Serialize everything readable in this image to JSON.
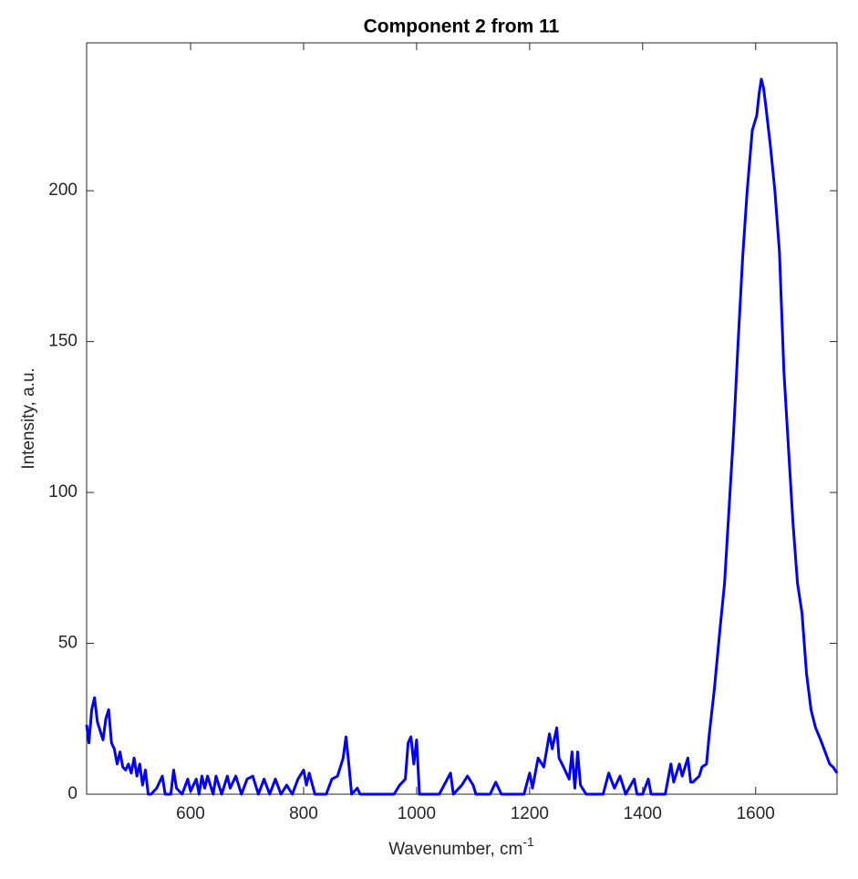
{
  "chart_data": {
    "type": "line",
    "title": "Component 2 from 11",
    "xlabel": {
      "text": "Wavenumber, cm",
      "superscript": "-1"
    },
    "ylabel": "Intensity, a.u.",
    "xlim": [
      416,
      1744
    ],
    "ylim": [
      0,
      249
    ],
    "xticks": [
      600,
      800,
      1000,
      1200,
      1400,
      1600
    ],
    "yticks": [
      0,
      50,
      100,
      150,
      200
    ],
    "grid": false,
    "series": [
      {
        "color": "#0000ff",
        "x": [
          416,
          420,
          425,
          430,
          435,
          440,
          445,
          450,
          455,
          460,
          465,
          470,
          475,
          480,
          485,
          490,
          495,
          500,
          505,
          510,
          515,
          520,
          525,
          530,
          540,
          550,
          555,
          565,
          570,
          575,
          585,
          595,
          600,
          610,
          615,
          620,
          625,
          630,
          640,
          645,
          655,
          665,
          670,
          680,
          690,
          700,
          710,
          720,
          730,
          740,
          750,
          760,
          770,
          780,
          790,
          800,
          805,
          810,
          820,
          840,
          850,
          860,
          870,
          875,
          880,
          885,
          895,
          900,
          960,
          970,
          980,
          985,
          990,
          995,
          1000,
          1005,
          1040,
          1060,
          1065,
          1080,
          1090,
          1100,
          1105,
          1130,
          1140,
          1150,
          1190,
          1200,
          1205,
          1215,
          1225,
          1235,
          1240,
          1248,
          1252,
          1260,
          1270,
          1275,
          1280,
          1285,
          1290,
          1300,
          1330,
          1340,
          1350,
          1360,
          1370,
          1385,
          1390,
          1400,
          1410,
          1415,
          1440,
          1450,
          1455,
          1465,
          1470,
          1480,
          1485,
          1489,
          1500,
          1505,
          1513,
          1518,
          1527,
          1537,
          1545,
          1553,
          1561,
          1569,
          1577,
          1585,
          1594,
          1602,
          1606,
          1610,
          1614,
          1618,
          1626,
          1634,
          1642,
          1650,
          1658,
          1666,
          1674,
          1682,
          1690,
          1698,
          1706,
          1715,
          1723,
          1731,
          1737,
          1744
        ],
        "values": [
          23,
          17,
          28,
          32,
          24,
          21,
          18,
          25,
          28,
          17,
          15,
          10,
          14,
          9,
          8,
          10,
          7,
          12,
          6,
          10,
          3,
          8,
          0,
          0,
          2,
          6,
          0,
          0,
          8,
          2,
          0,
          5,
          1,
          5,
          0,
          6,
          2,
          6,
          0,
          6,
          0,
          6,
          2,
          6,
          0,
          5,
          6,
          0,
          5,
          0,
          5,
          0,
          3,
          0,
          5,
          8,
          3,
          7,
          0,
          0,
          5,
          6,
          12,
          19,
          10,
          0,
          2,
          0,
          0,
          3,
          5,
          17,
          19,
          10,
          18,
          0,
          0,
          7,
          0,
          3,
          6,
          3,
          0,
          0,
          4,
          0,
          0,
          7,
          2,
          12,
          9,
          20,
          15,
          22,
          12,
          9,
          5,
          14,
          2,
          14,
          3,
          0,
          0,
          7,
          2,
          6,
          0,
          5,
          0,
          0,
          5,
          0,
          0,
          10,
          4,
          10,
          6,
          12,
          4,
          4,
          6,
          9,
          10,
          20,
          35,
          55,
          70,
          95,
          120,
          150,
          178,
          200,
          220,
          225,
          232,
          237,
          234,
          228,
          215,
          200,
          180,
          140,
          115,
          90,
          70,
          60,
          40,
          28,
          22,
          18,
          14,
          10,
          9,
          7
        ]
      }
    ]
  }
}
